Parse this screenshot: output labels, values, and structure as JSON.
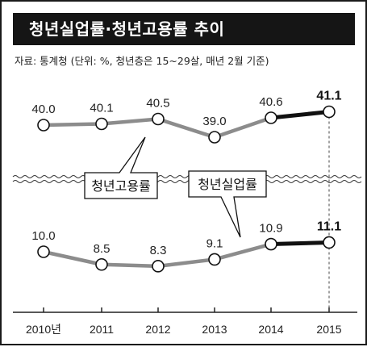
{
  "title": "청년실업률·청년고용률 추이",
  "source_note": "자료: 통계청 (단위: %, 청년층은 15~29살, 매년 2월 기준)",
  "chart_data": {
    "type": "line",
    "categories": [
      "2010년",
      "2011",
      "2012",
      "2013",
      "2014",
      "2015"
    ],
    "series": [
      {
        "name": "청년고용률",
        "values": [
          40.0,
          40.1,
          40.5,
          39.0,
          40.6,
          41.1
        ],
        "labels": [
          "40.0",
          "40.1",
          "40.5",
          "39.0",
          "40.6",
          "41.1"
        ]
      },
      {
        "name": "청년실업률",
        "values": [
          10.0,
          8.5,
          8.3,
          9.1,
          10.9,
          11.1
        ],
        "labels": [
          "10.0",
          "8.5",
          "8.3",
          "9.1",
          "10.9",
          "11.1"
        ]
      }
    ],
    "highlight_last_segment": true,
    "axis_break": true,
    "grid": false,
    "colors": {
      "line": "#8c8c8c",
      "highlight": "#111111",
      "marker_fill": "#ffffff",
      "marker_stroke": "#111111"
    }
  }
}
